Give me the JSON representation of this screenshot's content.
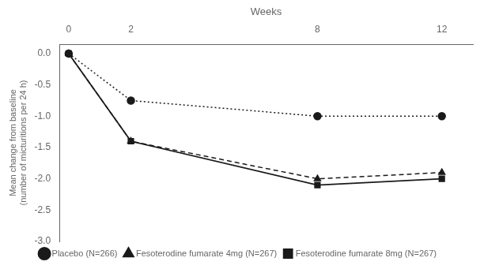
{
  "chart_data": {
    "type": "line",
    "x_label": "Weeks",
    "y_label": "Mean change from baseline\n(number of micturitions per 24 h)",
    "x": [
      0,
      2,
      8,
      12
    ],
    "series": [
      {
        "name": "Placebo (N=266)",
        "color": "#1a1a1a",
        "marker": "circle",
        "line_style": "dotted",
        "values": [
          0,
          -0.75,
          -1.0,
          -1.0
        ]
      },
      {
        "name": "Fesoterodine fumarate 4mg (N=267)",
        "color": "#1a1a1a",
        "marker": "triangle",
        "line_style": "dashed",
        "values": [
          0,
          -1.4,
          -2.0,
          -1.9
        ]
      },
      {
        "name": "Fesoterodine fumarate 8mg (N=267)",
        "color": "#1a1a1a",
        "marker": "square",
        "line_style": "solid",
        "values": [
          0,
          -1.4,
          -2.1,
          -2.0
        ]
      }
    ],
    "xlim": [
      -0.3,
      13.0
    ],
    "xticks": [
      0,
      2,
      8,
      12
    ],
    "ylim": [
      -3.0,
      0.15
    ],
    "yticks": [
      {
        "value": 0.0,
        "label": "0.0"
      },
      -0.5,
      {
        "value": -1.0,
        "label": "-1.0"
      },
      -1.5,
      {
        "value": -2.0,
        "label": "-2.0"
      },
      -2.5,
      {
        "value": -3.0,
        "label": "-3.0"
      }
    ],
    "grid": false,
    "legend": "bottom"
  }
}
